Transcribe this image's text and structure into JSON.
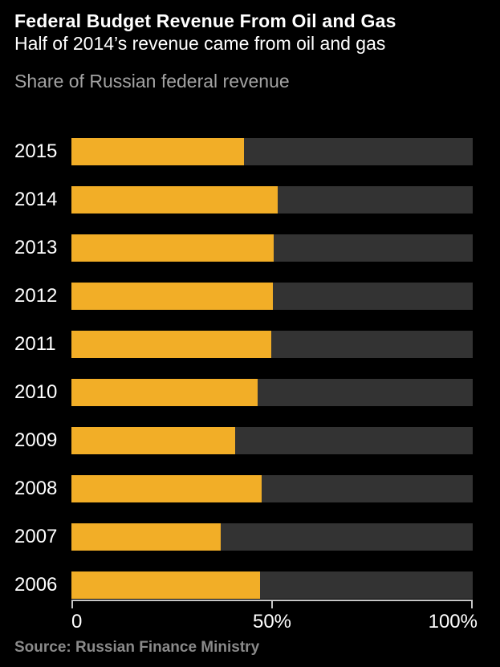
{
  "header": {
    "title": "Federal Budget Revenue From Oil and Gas",
    "subtitle": "Half of 2014’s revenue came from oil and gas",
    "caption": "Share of Russian federal revenue"
  },
  "chart_data": {
    "type": "bar",
    "orientation": "horizontal",
    "title": "Federal Budget Revenue From Oil and Gas",
    "subtitle": "Half of 2014’s revenue came from oil and gas",
    "unit_label": "Share of Russian federal revenue",
    "categories": [
      "2015",
      "2014",
      "2013",
      "2012",
      "2011",
      "2010",
      "2009",
      "2008",
      "2007",
      "2006"
    ],
    "values": [
      43.0,
      51.3,
      50.4,
      50.2,
      49.8,
      46.3,
      40.8,
      47.3,
      37.2,
      46.9
    ],
    "value_unit": "%",
    "xlim": [
      0,
      100
    ],
    "x_ticks": [
      "0",
      "50%",
      "100%"
    ],
    "grid": false,
    "legend": false,
    "bar_color": "#f2ae27",
    "track_color": "#333333",
    "axis_color": "#c6c6c6",
    "background_color": "#000000"
  },
  "footer": {
    "source": "Source: Russian Finance Ministry"
  }
}
